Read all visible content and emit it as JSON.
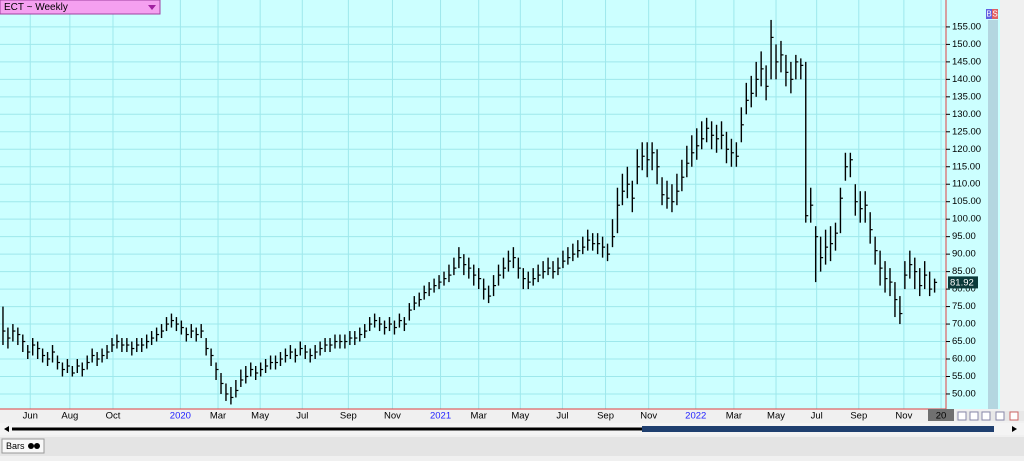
{
  "chart_data": {
    "type": "ohlc",
    "title": "ECT ~ Weekly",
    "color": "#000000",
    "grid": true,
    "high": [
      75,
      69,
      70,
      69,
      67,
      64,
      66,
      65,
      63,
      62,
      64,
      61,
      59,
      60,
      58,
      60,
      59,
      61,
      63,
      62,
      63,
      64,
      66,
      67,
      66,
      66,
      65,
      66,
      66,
      67,
      68,
      69,
      70,
      72,
      73,
      72,
      71,
      69,
      70,
      69,
      70,
      66,
      63,
      59,
      56,
      53,
      52,
      54,
      57,
      58,
      59,
      58,
      59,
      60,
      61,
      61,
      62,
      63,
      64,
      63,
      65,
      64,
      63,
      64,
      65,
      66,
      66,
      67,
      67,
      67,
      68,
      68,
      69,
      70,
      72,
      73,
      72,
      71,
      72,
      71,
      73,
      72,
      76,
      78,
      79,
      81,
      82,
      83,
      84,
      85,
      87,
      89,
      92,
      90,
      89,
      87,
      86,
      83,
      81,
      84,
      87,
      89,
      91,
      92,
      89,
      86,
      85,
      86,
      87,
      88,
      89,
      88,
      89,
      91,
      92,
      93,
      94,
      95,
      97,
      96,
      96,
      95,
      93,
      100,
      109,
      113,
      115,
      111,
      120,
      122,
      122,
      122,
      120,
      112,
      111,
      110,
      113,
      117,
      121,
      124,
      126,
      128,
      129,
      128,
      127,
      128,
      125,
      123,
      122,
      132,
      139,
      141,
      145,
      148,
      144,
      157,
      150,
      151,
      147,
      145,
      147,
      146,
      145,
      109,
      98,
      95,
      97,
      98,
      99,
      109,
      119,
      119,
      110,
      108,
      108,
      102,
      95,
      91,
      88,
      86,
      82,
      78,
      88,
      91,
      89,
      86,
      88,
      85,
      83
    ],
    "low": [
      64,
      63,
      65,
      64,
      62,
      60,
      61,
      60,
      59,
      58,
      59,
      57,
      55,
      56,
      55,
      56,
      55,
      57,
      59,
      58,
      59,
      60,
      62,
      63,
      62,
      62,
      61,
      62,
      62,
      63,
      64,
      65,
      66,
      68,
      69,
      68,
      67,
      65,
      66,
      65,
      66,
      61,
      58,
      54,
      50,
      48,
      47,
      49,
      52,
      53,
      55,
      54,
      55,
      56,
      57,
      57,
      58,
      59,
      60,
      59,
      61,
      60,
      59,
      60,
      61,
      62,
      62,
      63,
      63,
      63,
      64,
      64,
      65,
      66,
      68,
      69,
      68,
      67,
      68,
      67,
      69,
      68,
      71,
      74,
      75,
      77,
      78,
      79,
      80,
      81,
      82,
      84,
      86,
      84,
      83,
      81,
      80,
      77,
      76,
      78,
      81,
      83,
      85,
      86,
      83,
      80,
      80,
      81,
      82,
      83,
      84,
      83,
      84,
      86,
      87,
      88,
      89,
      90,
      91,
      91,
      90,
      89,
      88,
      92,
      96,
      104,
      106,
      102,
      110,
      114,
      112,
      114,
      110,
      104,
      103,
      102,
      104,
      108,
      112,
      115,
      117,
      120,
      122,
      120,
      119,
      120,
      116,
      115,
      115,
      122,
      130,
      132,
      135,
      138,
      134,
      140,
      140,
      142,
      138,
      136,
      140,
      140,
      99,
      99,
      82,
      85,
      87,
      88,
      91,
      96,
      111,
      112,
      101,
      99,
      99,
      93,
      87,
      81,
      79,
      78,
      72,
      70,
      80,
      83,
      80,
      78,
      80,
      78,
      79
    ],
    "close": [
      68,
      66,
      68,
      67,
      65,
      62,
      64,
      63,
      61,
      60,
      62,
      59,
      57,
      58,
      56,
      58,
      57,
      59,
      61,
      60,
      61,
      62,
      64,
      65,
      64,
      64,
      63,
      64,
      64,
      65,
      66,
      67,
      68,
      70,
      71,
      70,
      69,
      67,
      68,
      67,
      68,
      63,
      61,
      57,
      53,
      50,
      49,
      51,
      54,
      55,
      57,
      56,
      57,
      58,
      59,
      59,
      60,
      61,
      62,
      61,
      63,
      62,
      61,
      62,
      63,
      64,
      64,
      65,
      65,
      65,
      66,
      66,
      67,
      68,
      70,
      71,
      70,
      69,
      70,
      69,
      71,
      70,
      74,
      76,
      77,
      79,
      80,
      81,
      82,
      83,
      84,
      86,
      89,
      87,
      86,
      84,
      83,
      80,
      78,
      81,
      84,
      86,
      88,
      89,
      86,
      83,
      82,
      83,
      84,
      85,
      86,
      85,
      86,
      88,
      89,
      90,
      91,
      92,
      94,
      93,
      93,
      92,
      90,
      95,
      104,
      108,
      110,
      106,
      115,
      118,
      117,
      119,
      115,
      107,
      106,
      105,
      108,
      112,
      116,
      119,
      121,
      123,
      126,
      124,
      123,
      124,
      120,
      119,
      118,
      127,
      134,
      136,
      140,
      143,
      138,
      152,
      145,
      147,
      142,
      140,
      145,
      144,
      101,
      104,
      95,
      89,
      92,
      93,
      96,
      106,
      115,
      117,
      105,
      103,
      104,
      97,
      91,
      86,
      83,
      82,
      77,
      73,
      84,
      87,
      85,
      81,
      84,
      80,
      81.92
    ],
    "xlim": [
      -0.6,
      190.3
    ],
    "xticks": [
      {
        "value": 5.5,
        "label": "Jun"
      },
      {
        "value": 13.5,
        "label": "Aug"
      },
      {
        "value": 22.2,
        "label": "Oct"
      },
      {
        "value": 35.8,
        "label": "2020"
      },
      {
        "value": 43.4,
        "label": "Mar"
      },
      {
        "value": 51.9,
        "label": "May"
      },
      {
        "value": 60.4,
        "label": "Jul"
      },
      {
        "value": 69.7,
        "label": "Sep"
      },
      {
        "value": 78.6,
        "label": "Nov"
      },
      {
        "value": 88.3,
        "label": "2021"
      },
      {
        "value": 96,
        "label": "Mar"
      },
      {
        "value": 104.4,
        "label": "May"
      },
      {
        "value": 112.9,
        "label": "Jul"
      },
      {
        "value": 121.6,
        "label": "Sep"
      },
      {
        "value": 130.3,
        "label": "Nov"
      },
      {
        "value": 139.8,
        "label": "2022"
      },
      {
        "value": 147.5,
        "label": "Mar"
      },
      {
        "value": 156,
        "label": "May"
      },
      {
        "value": 164.2,
        "label": "Jul"
      },
      {
        "value": 172.7,
        "label": "Sep"
      },
      {
        "value": 181.8,
        "label": "Nov"
      },
      {
        "value": 189.3,
        "label": "20"
      }
    ],
    "ylim": [
      45.7,
      162.7
    ],
    "yticks": [
      {
        "value": 50,
        "label": "50.00"
      },
      {
        "value": 55,
        "label": "55.00"
      },
      {
        "value": 60,
        "label": "60.00"
      },
      {
        "value": 65,
        "label": "65.00"
      },
      {
        "value": 70,
        "label": "70.00"
      },
      {
        "value": 75,
        "label": "75.00"
      },
      {
        "value": 80,
        "label": "80.00"
      },
      {
        "value": 85,
        "label": "85.00"
      },
      {
        "value": 90,
        "label": "90.00"
      },
      {
        "value": 95,
        "label": "95.00"
      },
      {
        "value": 100,
        "label": "100.00"
      },
      {
        "value": 105,
        "label": "105.00"
      },
      {
        "value": 110,
        "label": "110.00"
      },
      {
        "value": 115,
        "label": "115.00"
      },
      {
        "value": 120,
        "label": "120.00"
      },
      {
        "value": 125,
        "label": "125.00"
      },
      {
        "value": 130,
        "label": "130.00"
      },
      {
        "value": 135,
        "label": "135.00"
      },
      {
        "value": 140,
        "label": "140.00"
      },
      {
        "value": 145,
        "label": "145.00"
      },
      {
        "value": 150,
        "label": "150.00"
      },
      {
        "value": 155,
        "label": "155.00"
      }
    ]
  },
  "ui": {
    "buy": "B",
    "sell": "S",
    "tab": "Bars"
  }
}
